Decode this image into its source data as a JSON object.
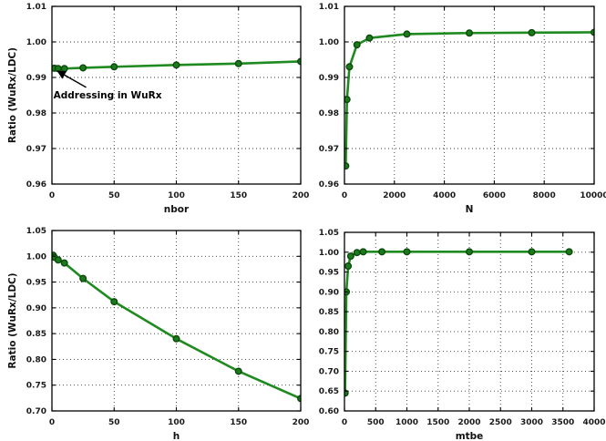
{
  "figure": {
    "background": "#ffffff",
    "shared_ylabel": "Ratio (WuRx/LDC)"
  },
  "styles": {
    "line_color": "#1f8a1f",
    "marker_fill": "#1b7a1b",
    "marker_edge": "#0a4a0a",
    "grid_color": "#3a3a3a",
    "axis_color": "#000000",
    "text_color": "#1a1a1a"
  },
  "chart_data": [
    {
      "id": "nbor",
      "position": "top-left",
      "type": "line",
      "xlabel": "nbor",
      "ylabel": "Ratio (WuRx/LDC)",
      "xlim": [
        0,
        200
      ],
      "ylim": [
        0.96,
        1.01
      ],
      "xticks": [
        0,
        50,
        100,
        150,
        200
      ],
      "xtick_labels": [
        "0",
        "50",
        "100",
        "150",
        "200"
      ],
      "yticks": [
        0.96,
        0.97,
        0.98,
        0.99,
        1.0,
        1.01
      ],
      "ytick_labels": [
        "0.96",
        "0.97",
        "0.98",
        "0.99",
        "1.00",
        "1.01"
      ],
      "grid": true,
      "x": [
        2,
        5,
        10,
        25,
        50,
        100,
        150,
        200
      ],
      "y": [
        0.9926,
        0.9925,
        0.9925,
        0.9927,
        0.993,
        0.9935,
        0.9939,
        0.9945
      ],
      "annotation": {
        "text": "Addressing in WuRx",
        "text_x": 1.2,
        "text_y": 0.9841,
        "arrow": {
          "x1": 27.5,
          "y1": 0.9872,
          "x2": 4.5,
          "y2": 0.9918
        }
      }
    },
    {
      "id": "N",
      "position": "top-right",
      "type": "line",
      "xlabel": "N",
      "ylabel": "",
      "xlim": [
        0,
        10000
      ],
      "ylim": [
        0.96,
        1.01
      ],
      "xticks": [
        0,
        2000,
        4000,
        6000,
        8000,
        10000
      ],
      "xtick_labels": [
        "0",
        "2000",
        "4000",
        "6000",
        "8000",
        "10000"
      ],
      "yticks": [
        0.96,
        0.97,
        0.98,
        0.99,
        1.0,
        1.01
      ],
      "ytick_labels": [
        "0.96",
        "0.97",
        "0.98",
        "0.99",
        "1.00",
        "1.01"
      ],
      "grid": true,
      "x": [
        50,
        100,
        200,
        500,
        1000,
        2500,
        5000,
        7500,
        10000
      ],
      "y": [
        0.9651,
        0.9838,
        0.993,
        0.9992,
        1.0011,
        1.0022,
        1.0025,
        1.0026,
        1.0027
      ]
    },
    {
      "id": "h",
      "position": "bottom-left",
      "type": "line",
      "xlabel": "h",
      "ylabel": "Ratio (WuRx/LDC)",
      "xlim": [
        0,
        200
      ],
      "ylim": [
        0.7,
        1.05
      ],
      "xticks": [
        0,
        50,
        100,
        150,
        200
      ],
      "xtick_labels": [
        "0",
        "50",
        "100",
        "150",
        "200"
      ],
      "yticks": [
        0.7,
        0.75,
        0.8,
        0.85,
        0.9,
        0.95,
        1.0,
        1.05
      ],
      "ytick_labels": [
        "0.70",
        "0.75",
        "0.80",
        "0.85",
        "0.90",
        "0.95",
        "1.00",
        "1.05"
      ],
      "grid": true,
      "x": [
        1,
        2,
        5,
        10,
        25,
        50,
        100,
        150,
        200
      ],
      "y": [
        1.002,
        0.998,
        0.993,
        0.987,
        0.957,
        0.912,
        0.84,
        0.777,
        0.724
      ]
    },
    {
      "id": "mtbe",
      "position": "bottom-right",
      "type": "line",
      "xlabel": "mtbe",
      "ylabel": "",
      "xlim": [
        0,
        4000
      ],
      "ylim": [
        0.6,
        1.05
      ],
      "xticks": [
        0,
        500,
        1000,
        1500,
        2000,
        2500,
        3000,
        3500,
        4000
      ],
      "xtick_labels": [
        "0",
        "500",
        "1000",
        "1500",
        "2000",
        "2500",
        "3000",
        "3500",
        "4000"
      ],
      "yticks": [
        0.6,
        0.65,
        0.7,
        0.75,
        0.8,
        0.85,
        0.9,
        0.95,
        1.0,
        1.05
      ],
      "ytick_labels": [
        "0.60",
        "0.65",
        "0.70",
        "0.75",
        "0.80",
        "0.85",
        "0.90",
        "0.95",
        "1.00",
        "1.05"
      ],
      "grid": true,
      "x": [
        10,
        30,
        60,
        100,
        200,
        300,
        600,
        1000,
        2000,
        3000,
        3600
      ],
      "y": [
        0.645,
        0.9,
        0.965,
        0.99,
        0.999,
        1.001,
        1.001,
        1.001,
        1.001,
        1.001,
        1.001
      ]
    }
  ]
}
